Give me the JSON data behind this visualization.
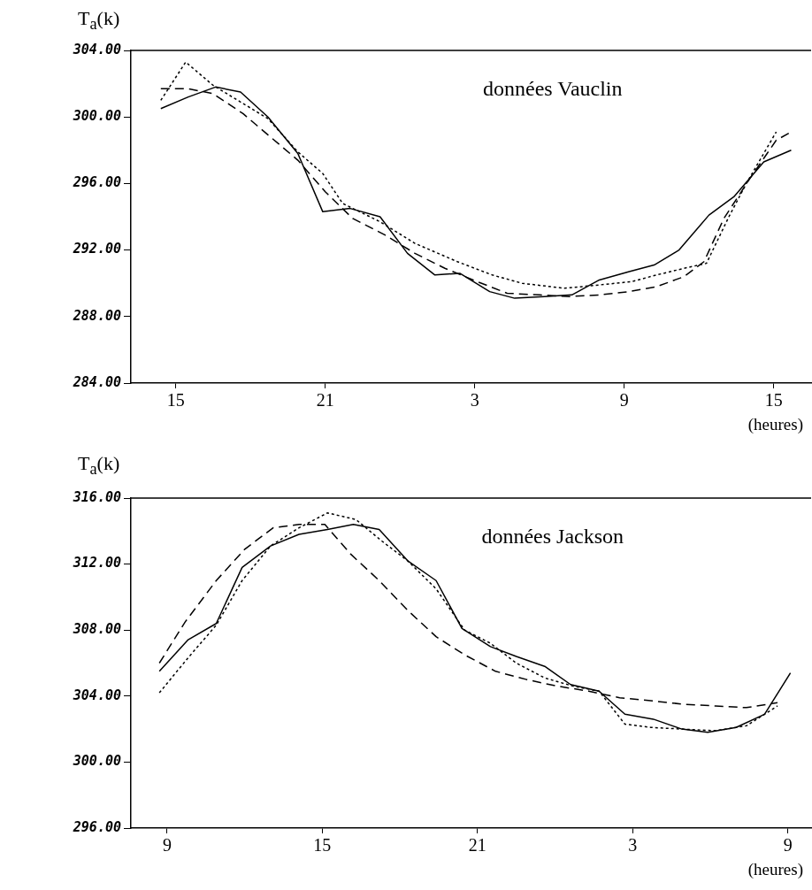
{
  "chart_data": [
    {
      "type": "line",
      "ylabel": "T$_{a}$(k)",
      "xlabel": "(heures)",
      "annotations": [
        "données Vauclin"
      ],
      "xlim": [
        "--01-01T13:12",
        "--01-02T16:30"
      ],
      "xticks": [
        {
          "value": "--01-01T15:00",
          "label": "15"
        },
        {
          "value": "--01-01T21:00",
          "label": "21"
        },
        {
          "value": "--01-02T03:00",
          "label": "3"
        },
        {
          "value": "--01-02T09:00",
          "label": "9"
        },
        {
          "value": "--01-02T15:00",
          "label": "15"
        }
      ],
      "ylim": [
        284,
        304
      ],
      "yticks": [
        {
          "value": 284,
          "label": "284.00"
        },
        {
          "value": 288,
          "label": "288.00"
        },
        {
          "value": 292,
          "label": "292.00"
        },
        {
          "value": 296,
          "label": "296.00"
        },
        {
          "value": 300,
          "label": "300.00"
        },
        {
          "value": 304,
          "label": "304.00"
        }
      ],
      "grid": false,
      "legend": false,
      "marker": "none",
      "series": [
        {
          "color": "#000000",
          "line_style": "solid",
          "x": [
            "--01-01T14:24",
            "--01-01T15:30",
            "--01-01T16:36",
            "--01-01T17:36",
            "--01-01T18:42",
            "--01-01T19:54",
            "--01-01T20:54",
            "--01-01T22:00",
            "--01-01T23:12",
            "--01-02T00:18",
            "--01-02T01:24",
            "--01-02T02:24",
            "--01-02T03:36",
            "--01-02T04:36",
            "--01-02T05:48",
            "--01-02T06:54",
            "--01-02T08:00",
            "--01-02T09:12",
            "--01-02T10:12",
            "--01-02T11:12",
            "--01-02T12:24",
            "--01-02T13:24",
            "--01-02T14:36",
            "--01-02T15:42"
          ],
          "values": [
            300.5,
            301.2,
            301.8,
            301.5,
            300.0,
            297.8,
            294.3,
            294.5,
            294.0,
            291.8,
            290.5,
            290.6,
            289.5,
            289.1,
            289.2,
            289.3,
            290.2,
            290.7,
            291.1,
            292.0,
            294.1,
            295.2,
            297.3,
            298.0
          ]
        },
        {
          "color": "#000000",
          "line_style": "dotted",
          "x": [
            "--01-01T14:24",
            "--01-01T15:24",
            "--01-01T16:30",
            "--01-01T17:36",
            "--01-01T18:42",
            "--01-01T19:54",
            "--01-01T20:54",
            "--01-01T21:42",
            "--01-01T23:12",
            "--01-02T00:36",
            "--01-02T02:18",
            "--01-02T03:42",
            "--01-02T04:54",
            "--01-02T06:36",
            "--01-02T08:00",
            "--01-02T09:18",
            "--01-02T10:18",
            "--01-02T11:24",
            "--01-02T12:18",
            "--01-02T13:12",
            "--01-02T13:54",
            "--01-02T15:06"
          ],
          "values": [
            301.0,
            303.3,
            301.9,
            300.9,
            299.9,
            297.9,
            296.6,
            294.8,
            293.7,
            292.4,
            291.3,
            290.5,
            290.0,
            289.7,
            289.9,
            290.1,
            290.5,
            290.9,
            291.2,
            294.0,
            296.0,
            299.1
          ]
        },
        {
          "color": "#000000",
          "line_style": "dashed",
          "x": [
            "--01-01T14:24",
            "--01-01T15:30",
            "--01-01T16:30",
            "--01-01T17:42",
            "--01-01T18:48",
            "--01-01T19:54",
            "--01-01T21:00",
            "--01-01T22:06",
            "--01-01T23:24",
            "--01-02T00:36",
            "--01-02T01:48",
            "--01-02T03:06",
            "--01-02T04:18",
            "--01-02T05:36",
            "--01-02T06:48",
            "--01-02T08:00",
            "--01-02T09:12",
            "--01-02T10:18",
            "--01-02T11:24",
            "--01-02T12:12",
            "--01-02T13:00",
            "--01-02T14:00",
            "--01-02T15:06",
            "--01-02T15:42"
          ],
          "values": [
            301.7,
            301.7,
            301.4,
            300.2,
            298.8,
            297.4,
            295.5,
            293.9,
            292.9,
            291.8,
            290.9,
            290.1,
            289.4,
            289.3,
            289.2,
            289.3,
            289.5,
            289.8,
            290.4,
            291.3,
            293.9,
            296.2,
            298.6,
            299.1
          ]
        }
      ]
    },
    {
      "type": "line",
      "ylabel": "T$_{a}$(k)",
      "xlabel": "(heures)",
      "annotations": [
        "données Jackson"
      ],
      "xlim": [
        "--01-01T07:36",
        "--01-02T09:54"
      ],
      "xticks": [
        {
          "value": "--01-01T09:00",
          "label": "9"
        },
        {
          "value": "--01-01T15:00",
          "label": "15"
        },
        {
          "value": "--01-01T21:00",
          "label": "21"
        },
        {
          "value": "--01-02T03:00",
          "label": "3"
        },
        {
          "value": "--01-02T09:00",
          "label": "9"
        }
      ],
      "ylim": [
        296,
        316
      ],
      "yticks": [
        {
          "value": 296,
          "label": "296.00"
        },
        {
          "value": 300,
          "label": "300.00"
        },
        {
          "value": 304,
          "label": "304.00"
        },
        {
          "value": 308,
          "label": "308.00"
        },
        {
          "value": 312,
          "label": "312.00"
        },
        {
          "value": 316,
          "label": "316.00"
        }
      ],
      "grid": false,
      "legend": false,
      "marker": "none",
      "series": [
        {
          "color": "#000000",
          "line_style": "solid",
          "x": [
            "--01-01T08:42",
            "--01-01T09:48",
            "--01-01T10:54",
            "--01-01T11:54",
            "--01-01T13:00",
            "--01-01T14:06",
            "--01-01T15:12",
            "--01-01T16:12",
            "--01-01T17:12",
            "--01-01T18:18",
            "--01-01T19:24",
            "--01-01T20:24",
            "--01-01T21:30",
            "--01-01T22:30",
            "--01-01T23:36",
            "--01-02T00:36",
            "--01-02T01:42",
            "--01-02T02:42",
            "--01-02T03:48",
            "--01-02T04:54",
            "--01-02T05:54",
            "--01-02T07:00",
            "--01-02T08:06",
            "--01-02T09:06"
          ],
          "values": [
            305.5,
            307.4,
            308.4,
            311.8,
            313.1,
            313.8,
            314.1,
            314.4,
            314.1,
            312.2,
            311.0,
            308.1,
            307.0,
            306.4,
            305.8,
            304.7,
            304.3,
            302.9,
            302.6,
            302.0,
            301.8,
            302.1,
            302.9,
            305.4
          ]
        },
        {
          "color": "#000000",
          "line_style": "dotted",
          "x": [
            "--01-01T08:42",
            "--01-01T09:48",
            "--01-01T10:54",
            "--01-01T11:54",
            "--01-01T13:00",
            "--01-01T14:06",
            "--01-01T15:12",
            "--01-01T16:18",
            "--01-01T17:18",
            "--01-01T18:18",
            "--01-01T19:24",
            "--01-01T20:30",
            "--01-01T21:30",
            "--01-01T22:30",
            "--01-01T23:36",
            "--01-02T00:42",
            "--01-02T01:42",
            "--01-02T02:42",
            "--01-02T03:42",
            "--01-02T04:54",
            "--01-02T06:12",
            "--01-02T07:24",
            "--01-02T08:36"
          ],
          "values": [
            304.2,
            306.3,
            308.3,
            311.0,
            313.1,
            314.2,
            315.1,
            314.7,
            313.4,
            312.2,
            310.5,
            308.0,
            307.2,
            306.0,
            305.1,
            304.6,
            304.3,
            302.3,
            302.1,
            302.0,
            301.9,
            302.2,
            303.4
          ]
        },
        {
          "color": "#000000",
          "line_style": "dashed",
          "x": [
            "--01-01T08:42",
            "--01-01T09:42",
            "--01-01T10:54",
            "--01-01T12:00",
            "--01-01T13:06",
            "--01-01T14:06",
            "--01-01T15:06",
            "--01-01T16:06",
            "--01-01T17:12",
            "--01-01T18:18",
            "--01-01T19:24",
            "--01-01T20:30",
            "--01-01T21:42",
            "--01-01T22:54",
            "--01-02T00:06",
            "--01-02T01:18",
            "--01-02T02:30",
            "--01-02T03:48",
            "--01-02T05:00",
            "--01-02T06:12",
            "--01-02T07:24",
            "--01-02T08:36"
          ],
          "values": [
            306.0,
            308.5,
            311.0,
            312.9,
            314.2,
            314.4,
            314.4,
            312.6,
            311.0,
            309.2,
            307.6,
            306.5,
            305.5,
            305.0,
            304.6,
            304.3,
            303.9,
            303.7,
            303.5,
            303.4,
            303.3,
            303.6
          ]
        }
      ]
    }
  ]
}
